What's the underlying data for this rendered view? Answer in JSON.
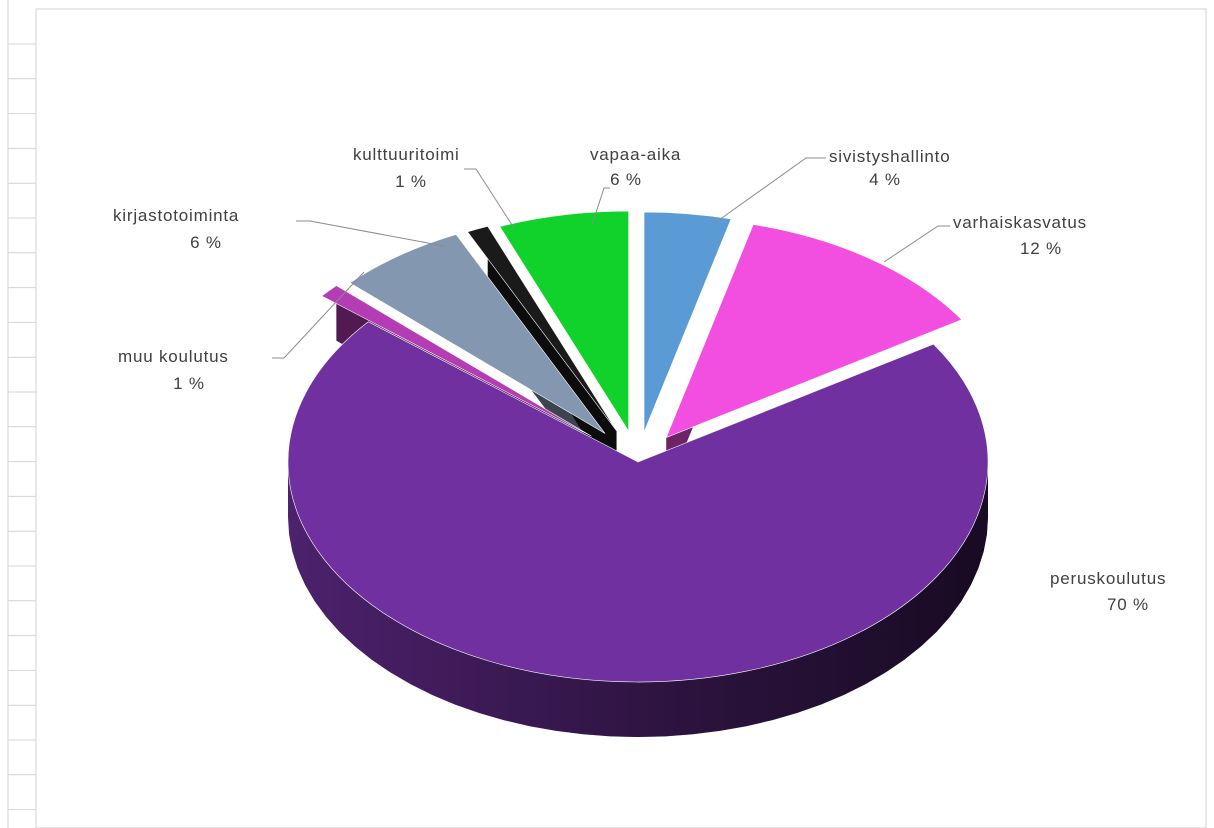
{
  "chart_data": {
    "type": "pie",
    "title": "",
    "start_angle_deg": 0,
    "style": "3d-exploded",
    "slices": [
      {
        "label": "sivistyshallinto",
        "percent_label": "4 %",
        "value": 4,
        "color": "#5b9bd5"
      },
      {
        "label": "varhaiskasvatus",
        "percent_label": "12 %",
        "value": 12,
        "color": "#f24ee0"
      },
      {
        "label": "peruskoulutus",
        "percent_label": "70 %",
        "value": 70,
        "color": "#7030a0"
      },
      {
        "label": "muu koulutus",
        "percent_label": "1 %",
        "value": 1,
        "color": "#b43cb4"
      },
      {
        "label": "kirjastotoiminta",
        "percent_label": "6 %",
        "value": 6,
        "color": "#8497b0"
      },
      {
        "label": "kulttuuritoimi",
        "percent_label": "1 %",
        "value": 1,
        "color": "#1a1a1a"
      },
      {
        "label": "vapaa-aika",
        "percent_label": "6 %",
        "value": 6,
        "color": "#11d22b"
      }
    ],
    "legend": "none",
    "data_labels": "outside-with-leader-lines"
  }
}
